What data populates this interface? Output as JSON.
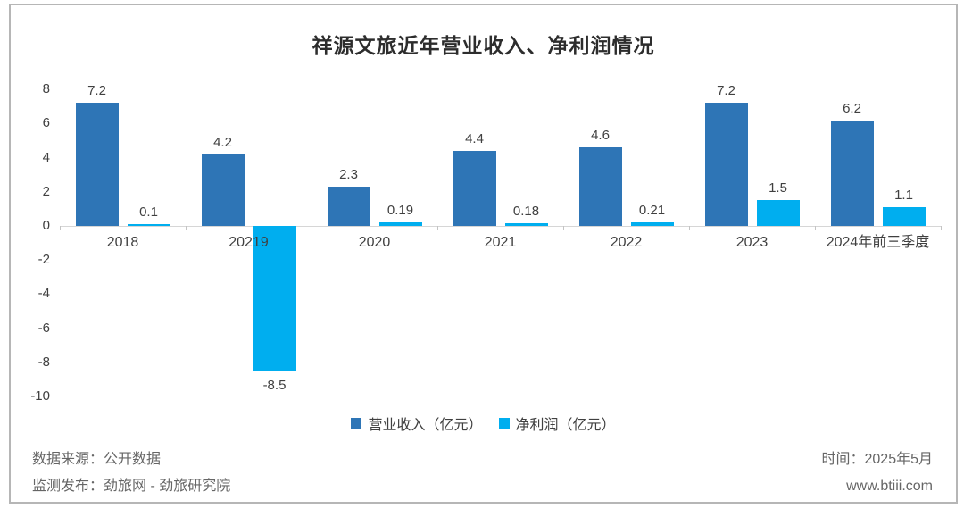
{
  "title": "祥源文旅近年营业收入、净利润情况",
  "chart_data": {
    "type": "bar",
    "categories": [
      "2018",
      "20219",
      "2020",
      "2021",
      "2022",
      "2023",
      "2024年前三季度"
    ],
    "series": [
      {
        "id": "revenue",
        "name": "营业收入（亿元）",
        "color": "#2E75B6",
        "values": [
          7.2,
          4.2,
          2.3,
          4.4,
          4.6,
          7.2,
          6.2
        ]
      },
      {
        "id": "net-profit",
        "name": "净利润（亿元）",
        "color": "#00AEEF",
        "values": [
          0.1,
          -8.5,
          0.19,
          0.18,
          0.21,
          1.5,
          1.1
        ]
      }
    ],
    "ylim": [
      -10,
      8
    ],
    "ytick_step": 2,
    "grid": false,
    "legend_position": "bottom",
    "axis_text_color": "#404040",
    "baseline_color": "#d6d6d6"
  },
  "legend": {
    "items": [
      {
        "label": "营业收入（亿元）",
        "color": "#2E75B6"
      },
      {
        "label": "净利润（亿元）",
        "color": "#00AEEF"
      }
    ]
  },
  "footer": {
    "source_line": "数据来源：公开数据",
    "publisher_line": "监测发布：劲旅网 - 劲旅研究院",
    "time_line": "时间：2025年5月",
    "website": "www.btiii.com"
  }
}
